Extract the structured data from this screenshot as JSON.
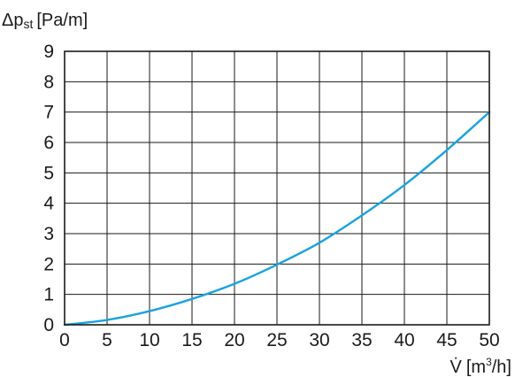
{
  "chart_data": {
    "type": "line",
    "ylabel": {
      "symbol": "Δp",
      "subscript": "st",
      "unit": "[Pa/m]"
    },
    "xlabel": {
      "symbol": "V̇",
      "unit_prefix": "[m",
      "unit_superscript": "3",
      "unit_suffix": "/h]"
    },
    "xlim": [
      0,
      50
    ],
    "ylim": [
      0,
      9
    ],
    "xticks": [
      "0",
      "5",
      "10",
      "15",
      "20",
      "25",
      "30",
      "35",
      "40",
      "45",
      "50"
    ],
    "yticks": [
      "0",
      "1",
      "2",
      "3",
      "4",
      "5",
      "6",
      "7",
      "8",
      "9"
    ],
    "grid": true,
    "series": [
      {
        "color": "#1aa3dc",
        "x": [
          0,
          5,
          10,
          15,
          20,
          25,
          30,
          35,
          40,
          45,
          50
        ],
        "y": [
          0,
          0.16,
          0.45,
          0.85,
          1.35,
          1.98,
          2.7,
          3.6,
          4.6,
          5.75,
          7.0
        ]
      }
    ]
  }
}
